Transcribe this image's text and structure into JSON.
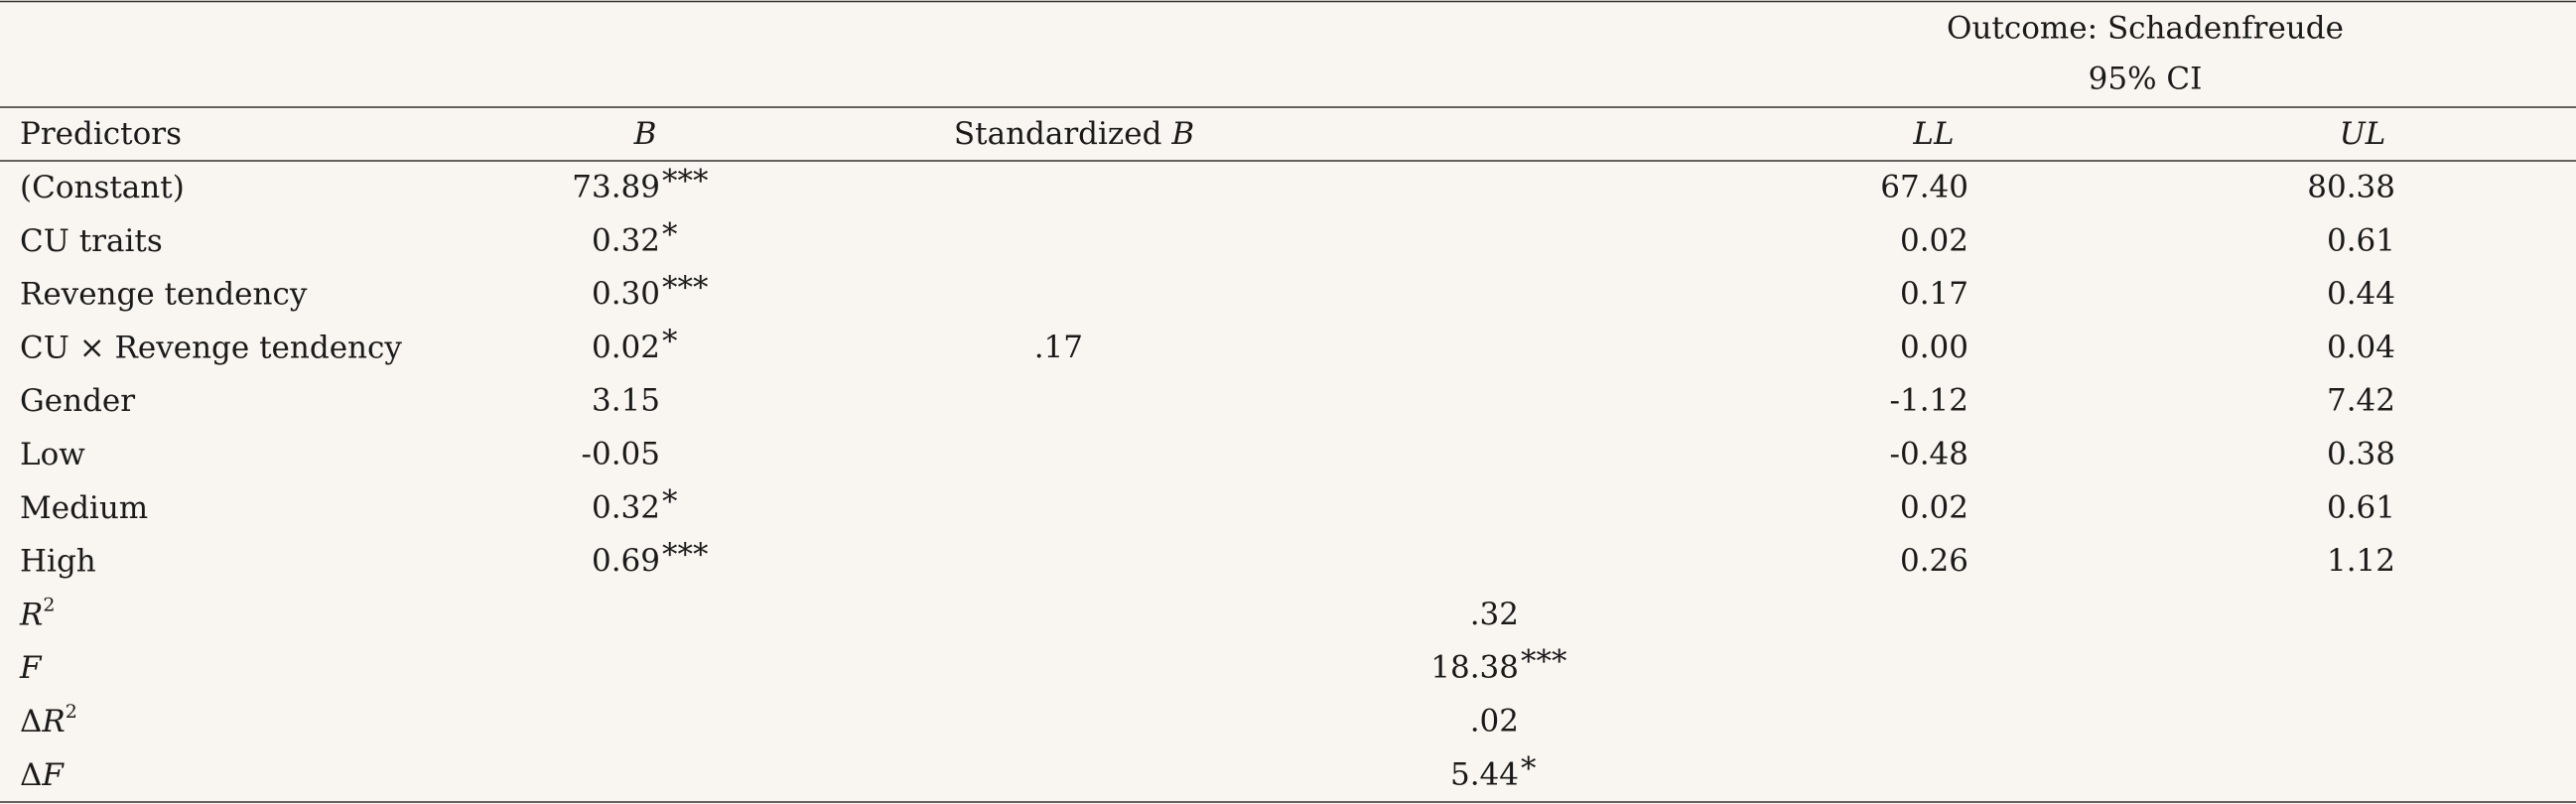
{
  "header": {
    "title": "Outcome: Schadenfreude",
    "ci_label": "95% CI"
  },
  "columns": [
    [
      {
        "text": "Predictors"
      }
    ],
    [
      {
        "text": "B",
        "style": "italic"
      }
    ],
    [
      {
        "text": "Standardized "
      },
      {
        "text": "B",
        "style": "italic"
      }
    ],
    [
      {
        "text": "LL",
        "style": "italic"
      }
    ],
    [
      {
        "text": "UL",
        "style": "italic"
      }
    ]
  ],
  "rows": [
    {
      "label": [
        {
          "text": "(Constant)"
        }
      ],
      "b": "73.89",
      "b_sig": "***",
      "ll": "67.40",
      "ul": "80.38"
    },
    {
      "label": [
        {
          "text": "CU traits"
        }
      ],
      "b": "0.32",
      "b_sig": "*",
      "ll": "0.02",
      "ul": "0.61"
    },
    {
      "label": [
        {
          "text": "Revenge tendency"
        }
      ],
      "b": "0.30",
      "b_sig": "***",
      "ll": "0.17",
      "ul": "0.44"
    },
    {
      "label": [
        {
          "text": "CU × Revenge tendency"
        }
      ],
      "b": "0.02",
      "b_sig": "*",
      "std": ".17",
      "ll": "0.00",
      "ul": "0.04"
    },
    {
      "label": [
        {
          "text": "Gender"
        }
      ],
      "b": "3.15",
      "ll": "-1.12",
      "ul": "7.42"
    },
    {
      "label": [
        {
          "text": "Low"
        }
      ],
      "b": "-0.05",
      "ll": "-0.48",
      "ul": "0.38"
    },
    {
      "label": [
        {
          "text": "Medium"
        }
      ],
      "b": "0.32",
      "b_sig": "*",
      "ll": "0.02",
      "ul": "0.61"
    },
    {
      "label": [
        {
          "text": "High"
        }
      ],
      "b": "0.69",
      "b_sig": "***",
      "ll": "0.26",
      "ul": "1.12"
    },
    {
      "label": [
        {
          "text": "R",
          "style": "italic"
        },
        {
          "text": "2",
          "style": "sup"
        }
      ],
      "value": ".32"
    },
    {
      "label": [
        {
          "text": "F",
          "style": "italic"
        }
      ],
      "value": "18.38",
      "sig": "***"
    },
    {
      "label": [
        {
          "text": "Δ"
        },
        {
          "text": "R",
          "style": "italic"
        },
        {
          "text": "2",
          "style": "sup"
        }
      ],
      "value": ".02"
    },
    {
      "label": [
        {
          "text": "Δ"
        },
        {
          "text": "F",
          "style": "italic"
        }
      ],
      "value": "5.44",
      "sig": "*"
    }
  ]
}
